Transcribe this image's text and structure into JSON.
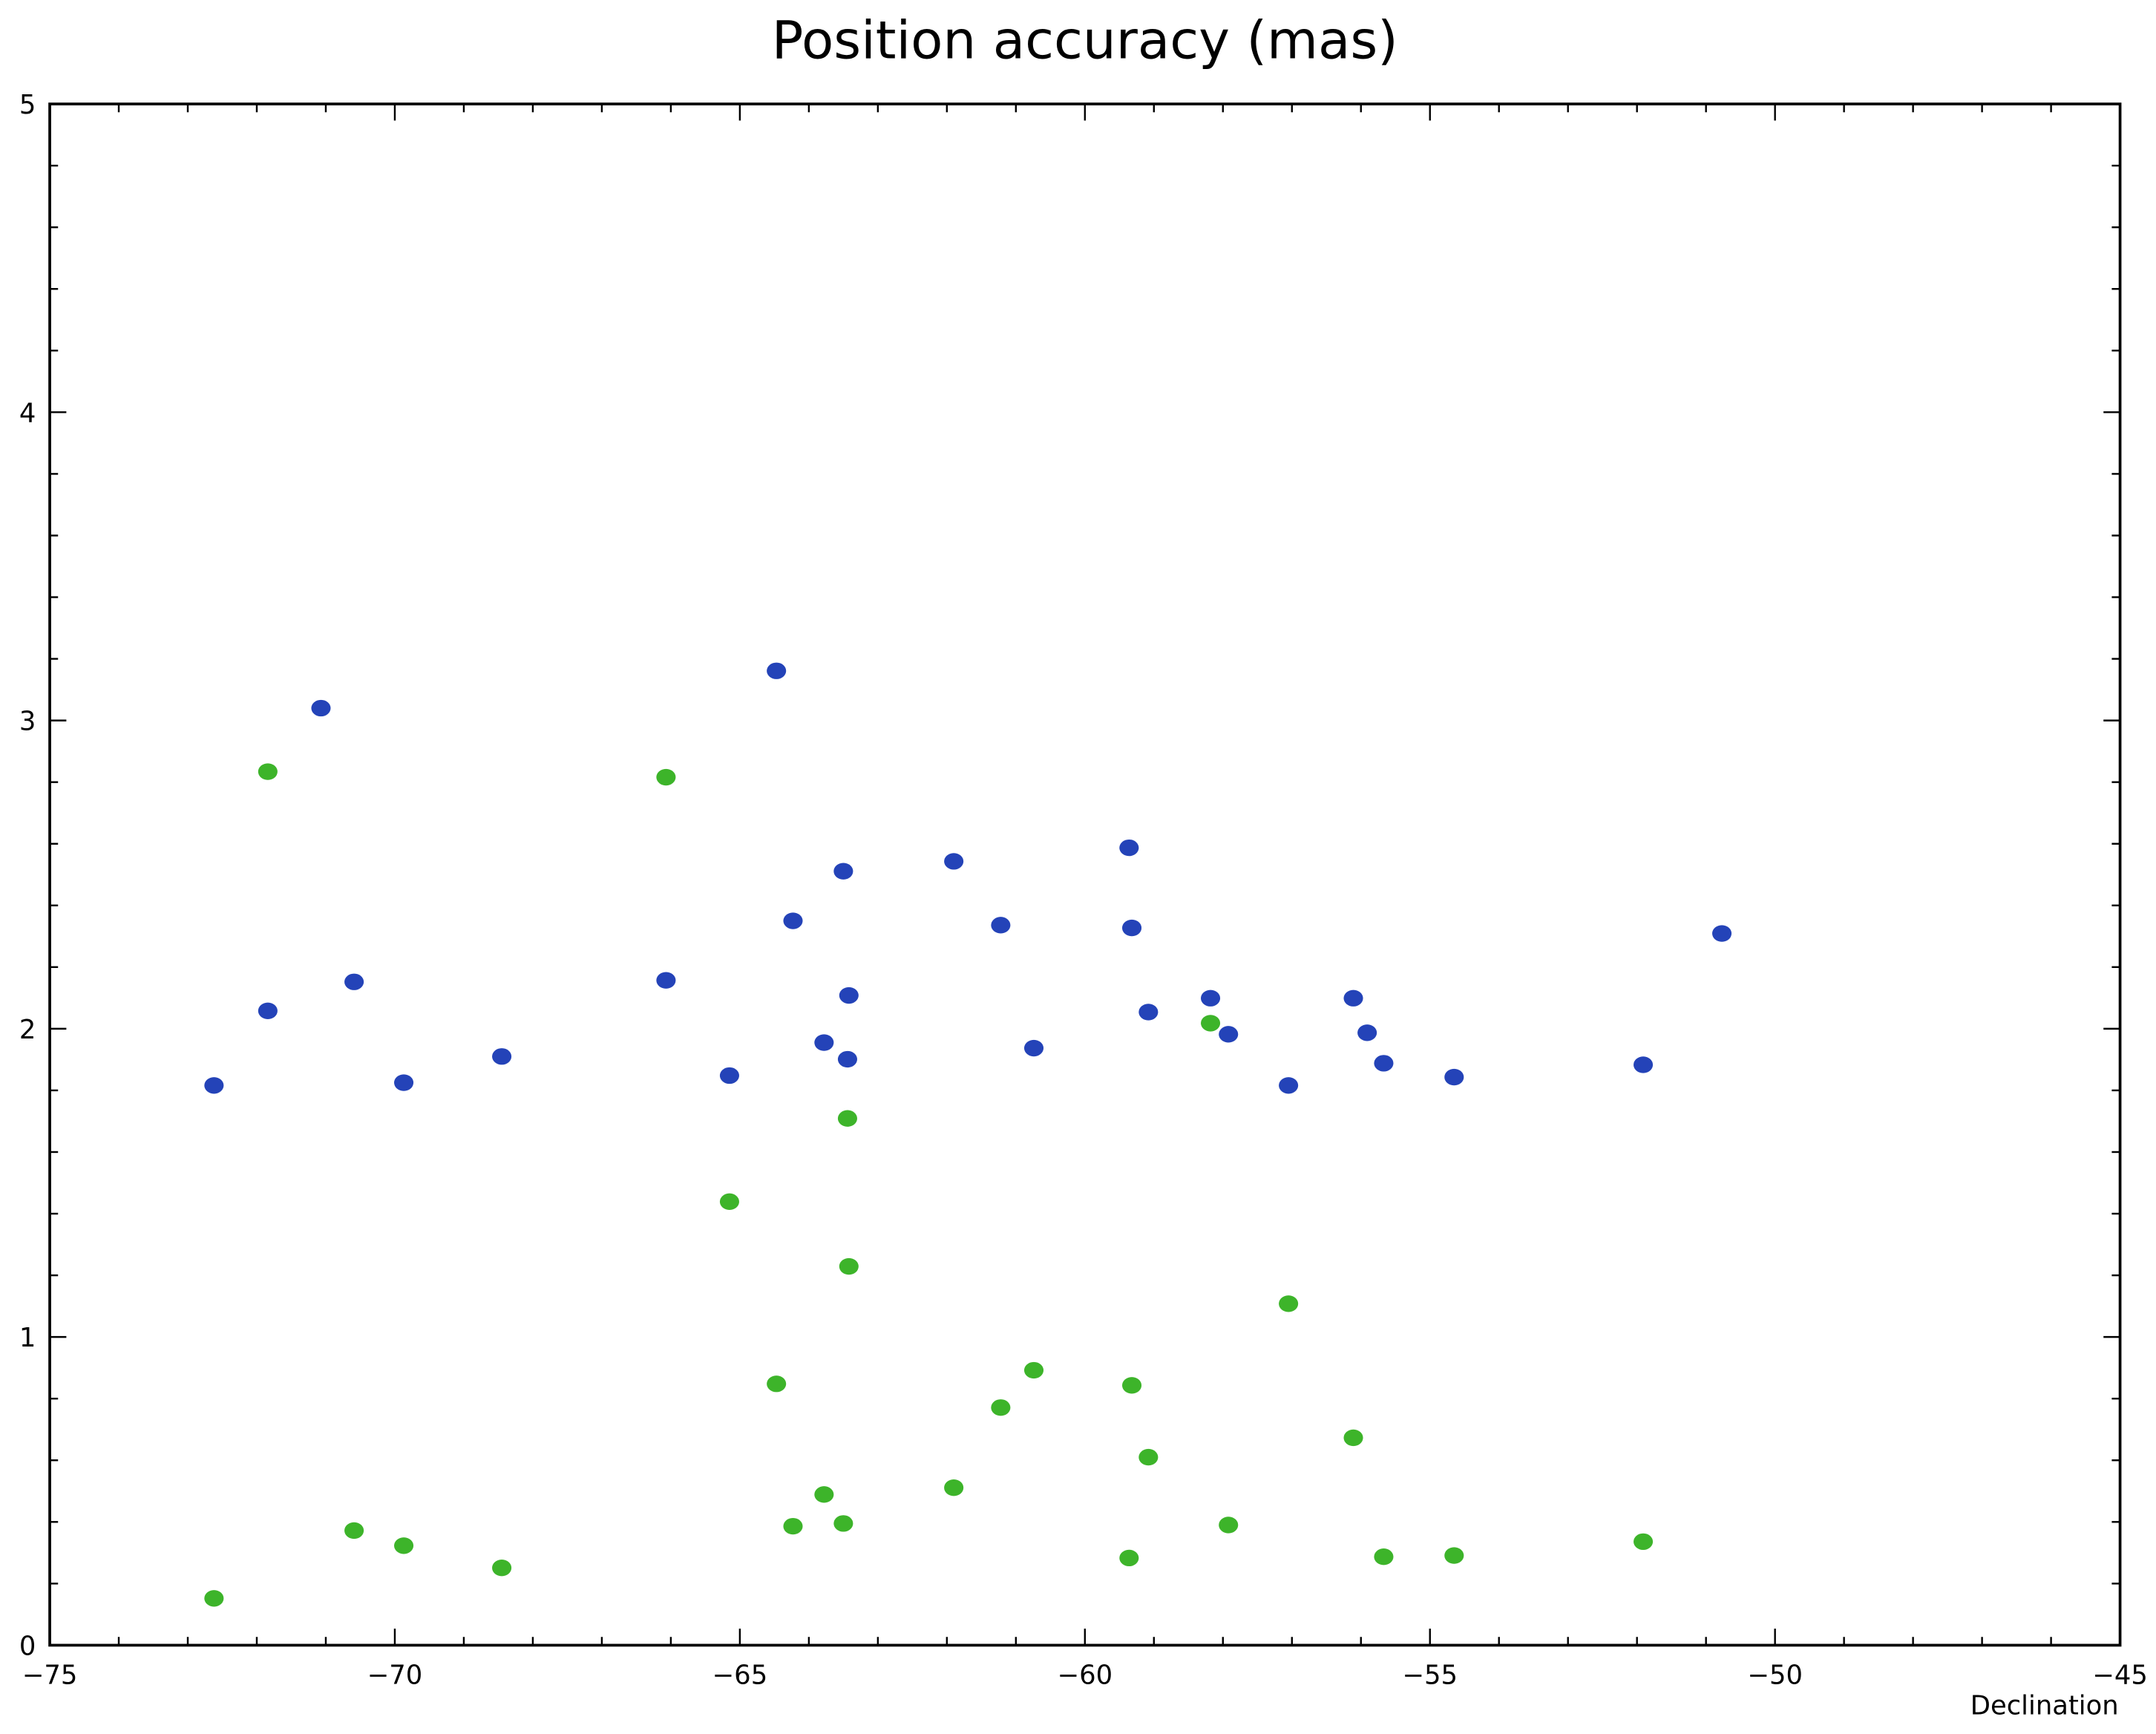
{
  "chart_data": {
    "type": "scatter",
    "title": "Position accuracy (mas)",
    "xlabel": "Declination",
    "ylabel": "",
    "xlim": [
      -75,
      -45
    ],
    "ylim": [
      0,
      5
    ],
    "x_ticks": [
      -75,
      -70,
      -65,
      -60,
      -55,
      -50,
      -45
    ],
    "x_tick_labels": [
      "−75",
      "−70",
      "−65",
      "−60",
      "−55",
      "−50",
      "−45"
    ],
    "y_ticks": [
      0,
      1,
      2,
      3,
      4,
      5
    ],
    "y_tick_labels": [
      "0",
      "1",
      "2",
      "3",
      "4",
      "5"
    ],
    "x_minor_step": 1,
    "y_minor_step": 0.2,
    "grid": false,
    "legend": "none",
    "series": [
      {
        "color": "#2443b8",
        "points": [
          [
            -72.62,
            1.816
          ],
          [
            -71.84,
            2.058
          ],
          [
            -71.07,
            3.04
          ],
          [
            -70.59,
            2.152
          ],
          [
            -69.87,
            1.825
          ],
          [
            -68.45,
            1.91
          ],
          [
            -66.07,
            2.157
          ],
          [
            -65.15,
            1.848
          ],
          [
            -64.47,
            3.161
          ],
          [
            -64.23,
            2.35
          ],
          [
            -63.78,
            1.955
          ],
          [
            -63.5,
            2.511
          ],
          [
            -63.44,
            1.901
          ],
          [
            -63.42,
            2.108
          ],
          [
            -61.9,
            2.543
          ],
          [
            -61.22,
            2.336
          ],
          [
            -60.74,
            1.937
          ],
          [
            -59.36,
            2.587
          ],
          [
            -59.32,
            2.327
          ],
          [
            -59.08,
            2.054
          ],
          [
            -58.18,
            2.099
          ],
          [
            -57.92,
            1.982
          ],
          [
            -57.05,
            1.816
          ],
          [
            -56.11,
            2.099
          ],
          [
            -55.91,
            1.987
          ],
          [
            -55.67,
            1.888
          ],
          [
            -54.65,
            1.843
          ],
          [
            -51.91,
            1.883
          ],
          [
            -50.77,
            2.309
          ]
        ]
      },
      {
        "color": "#3db42a",
        "points": [
          [
            -72.62,
            0.152
          ],
          [
            -71.84,
            2.834
          ],
          [
            -70.59,
            0.372
          ],
          [
            -69.87,
            0.323
          ],
          [
            -68.45,
            0.251
          ],
          [
            -66.07,
            2.816
          ],
          [
            -65.15,
            1.439
          ],
          [
            -64.47,
            0.848
          ],
          [
            -64.23,
            0.386
          ],
          [
            -63.78,
            0.489
          ],
          [
            -63.5,
            0.395
          ],
          [
            -63.44,
            1.709
          ],
          [
            -63.42,
            1.229
          ],
          [
            -61.9,
            0.511
          ],
          [
            -61.22,
            0.771
          ],
          [
            -60.74,
            0.892
          ],
          [
            -59.36,
            0.283
          ],
          [
            -59.32,
            0.843
          ],
          [
            -59.08,
            0.61
          ],
          [
            -58.18,
            2.018
          ],
          [
            -57.92,
            0.39
          ],
          [
            -57.05,
            1.108
          ],
          [
            -56.11,
            0.673
          ],
          [
            -55.67,
            0.287
          ],
          [
            -54.65,
            0.291
          ],
          [
            -51.91,
            0.336
          ]
        ]
      }
    ]
  }
}
